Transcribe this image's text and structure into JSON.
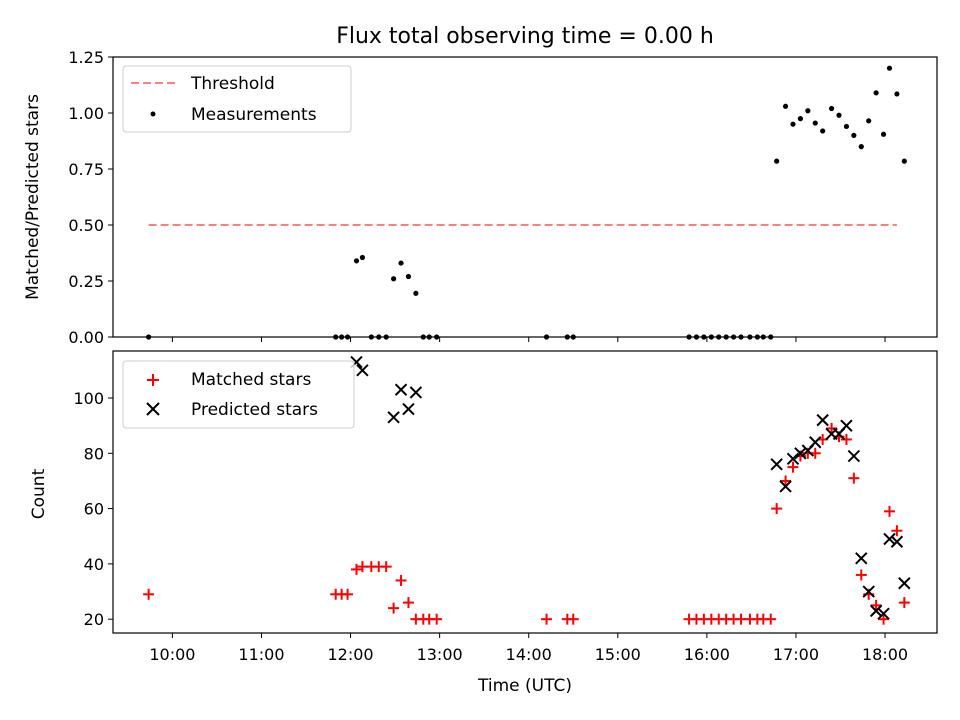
{
  "title": "Flux total observing time = 0.00 h",
  "colors": {
    "threshold": "#ff7f7f",
    "measurement": "#000000",
    "matched": "#ff0000",
    "predicted": "#000000"
  },
  "chart_data": [
    {
      "type": "scatter",
      "ylabel": "Matched/Predicted stars",
      "ylim": [
        0,
        1.25
      ],
      "yticks": [
        "0.00",
        "0.25",
        "0.50",
        "0.75",
        "1.00",
        "1.25"
      ],
      "xlim": [
        "09:20",
        "18:35"
      ],
      "legend": {
        "position": "top-left",
        "entries": [
          "Threshold",
          "Measurements"
        ]
      },
      "threshold": {
        "name": "Threshold",
        "value": 0.5,
        "x": [
          "09:44",
          "18:08"
        ]
      },
      "series": [
        {
          "name": "Measurements",
          "points": [
            [
              "09:44",
              0
            ],
            [
              "11:50",
              0
            ],
            [
              "11:54",
              0
            ],
            [
              "11:58",
              0
            ],
            [
              "12:04",
              0.34
            ],
            [
              "12:08",
              0.355
            ],
            [
              "12:14",
              0
            ],
            [
              "12:19",
              0
            ],
            [
              "12:24",
              0
            ],
            [
              "12:29",
              0.26
            ],
            [
              "12:34",
              0.33
            ],
            [
              "12:39",
              0.27
            ],
            [
              "12:44",
              0.195
            ],
            [
              "12:49",
              0
            ],
            [
              "12:53",
              0
            ],
            [
              "12:58",
              0
            ],
            [
              "14:12",
              0
            ],
            [
              "14:26",
              0
            ],
            [
              "14:30",
              0
            ],
            [
              "15:48",
              0
            ],
            [
              "15:53",
              0
            ],
            [
              "15:58",
              0
            ],
            [
              "16:03",
              0
            ],
            [
              "16:08",
              0
            ],
            [
              "16:13",
              0
            ],
            [
              "16:18",
              0
            ],
            [
              "16:23",
              0
            ],
            [
              "16:29",
              0
            ],
            [
              "16:34",
              0
            ],
            [
              "16:38",
              0
            ],
            [
              "16:43",
              0
            ],
            [
              "16:47",
              0.785
            ],
            [
              "16:53",
              1.03
            ],
            [
              "16:58",
              0.95
            ],
            [
              "17:03",
              0.975
            ],
            [
              "17:08",
              1.01
            ],
            [
              "17:13",
              0.955
            ],
            [
              "17:18",
              0.92
            ],
            [
              "17:24",
              1.02
            ],
            [
              "17:29",
              0.99
            ],
            [
              "17:34",
              0.94
            ],
            [
              "17:39",
              0.9
            ],
            [
              "17:44",
              0.85
            ],
            [
              "17:49",
              0.965
            ],
            [
              "17:54",
              1.09
            ],
            [
              "17:59",
              0.905
            ],
            [
              "18:03",
              1.2
            ],
            [
              "18:08",
              1.085
            ],
            [
              "18:13",
              0.785
            ]
          ]
        }
      ]
    },
    {
      "type": "scatter",
      "xlabel": "Time (UTC)",
      "ylabel": "Count",
      "ylim": [
        15,
        117
      ],
      "yticks": [
        "20",
        "40",
        "60",
        "80",
        "100"
      ],
      "xlim": [
        "09:20",
        "18:35"
      ],
      "xticks": [
        "10:00",
        "11:00",
        "12:00",
        "13:00",
        "14:00",
        "15:00",
        "16:00",
        "17:00",
        "18:00"
      ],
      "legend": {
        "position": "top-left",
        "entries": [
          "Matched stars",
          "Predicted stars"
        ]
      },
      "series": [
        {
          "name": "Matched stars",
          "points": [
            [
              "09:44",
              29
            ],
            [
              "11:50",
              29
            ],
            [
              "11:54",
              29
            ],
            [
              "11:58",
              29
            ],
            [
              "12:04",
              38
            ],
            [
              "12:08",
              39
            ],
            [
              "12:14",
              39
            ],
            [
              "12:19",
              39
            ],
            [
              "12:24",
              39
            ],
            [
              "12:29",
              24
            ],
            [
              "12:34",
              34
            ],
            [
              "12:39",
              26
            ],
            [
              "12:44",
              20
            ],
            [
              "12:49",
              20
            ],
            [
              "12:53",
              20
            ],
            [
              "12:58",
              20
            ],
            [
              "14:12",
              20
            ],
            [
              "14:26",
              20
            ],
            [
              "14:30",
              20
            ],
            [
              "15:48",
              20
            ],
            [
              "15:53",
              20
            ],
            [
              "15:58",
              20
            ],
            [
              "16:03",
              20
            ],
            [
              "16:08",
              20
            ],
            [
              "16:13",
              20
            ],
            [
              "16:18",
              20
            ],
            [
              "16:23",
              20
            ],
            [
              "16:29",
              20
            ],
            [
              "16:34",
              20
            ],
            [
              "16:38",
              20
            ],
            [
              "16:43",
              20
            ],
            [
              "16:47",
              60
            ],
            [
              "16:53",
              70
            ],
            [
              "16:58",
              75
            ],
            [
              "17:03",
              79
            ],
            [
              "17:08",
              80
            ],
            [
              "17:13",
              80
            ],
            [
              "17:18",
              85
            ],
            [
              "17:24",
              89
            ],
            [
              "17:29",
              86
            ],
            [
              "17:34",
              85
            ],
            [
              "17:39",
              71
            ],
            [
              "17:44",
              36
            ],
            [
              "17:49",
              29
            ],
            [
              "17:54",
              25
            ],
            [
              "17:59",
              20
            ],
            [
              "18:03",
              59
            ],
            [
              "18:08",
              52
            ],
            [
              "18:13",
              26
            ]
          ]
        },
        {
          "name": "Predicted stars",
          "points": [
            [
              "12:04",
              113
            ],
            [
              "12:08",
              110
            ],
            [
              "12:29",
              93
            ],
            [
              "12:34",
              103
            ],
            [
              "12:39",
              96
            ],
            [
              "12:44",
              102
            ],
            [
              "16:47",
              76
            ],
            [
              "16:53",
              68
            ],
            [
              "16:58",
              78
            ],
            [
              "17:03",
              80
            ],
            [
              "17:08",
              81
            ],
            [
              "17:13",
              84
            ],
            [
              "17:18",
              92
            ],
            [
              "17:24",
              87
            ],
            [
              "17:29",
              87
            ],
            [
              "17:34",
              90
            ],
            [
              "17:39",
              79
            ],
            [
              "17:44",
              42
            ],
            [
              "17:49",
              30
            ],
            [
              "17:54",
              23
            ],
            [
              "17:59",
              22
            ],
            [
              "18:03",
              49
            ],
            [
              "18:08",
              48
            ],
            [
              "18:13",
              33
            ]
          ]
        }
      ]
    }
  ]
}
